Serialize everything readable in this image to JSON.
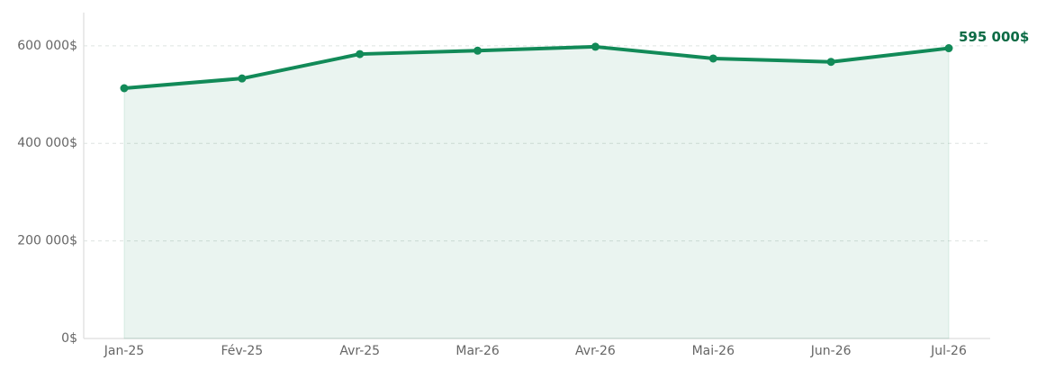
{
  "chart_data": {
    "type": "line",
    "categories": [
      "Jan-25",
      "Fév-25",
      "Avr-25",
      "Mar-26",
      "Avr-26",
      "Mai-26",
      "Jun-26",
      "Jul-26"
    ],
    "series": [
      {
        "color": "#128a58",
        "values": [
          513000,
          533000,
          583000,
          590000,
          598000,
          574000,
          567000,
          595000
        ],
        "value_labels": [
          null,
          null,
          null,
          null,
          null,
          null,
          null,
          "595 000$"
        ]
      }
    ],
    "ylim": [
      0,
      668000
    ],
    "yticks": [
      {
        "value": 0,
        "label": "0$"
      },
      {
        "value": 200000,
        "label": "200 000$"
      },
      {
        "value": 400000,
        "label": "400 000$"
      },
      {
        "value": 600000,
        "label": "600 000$"
      }
    ],
    "grid": true,
    "area": true
  }
}
